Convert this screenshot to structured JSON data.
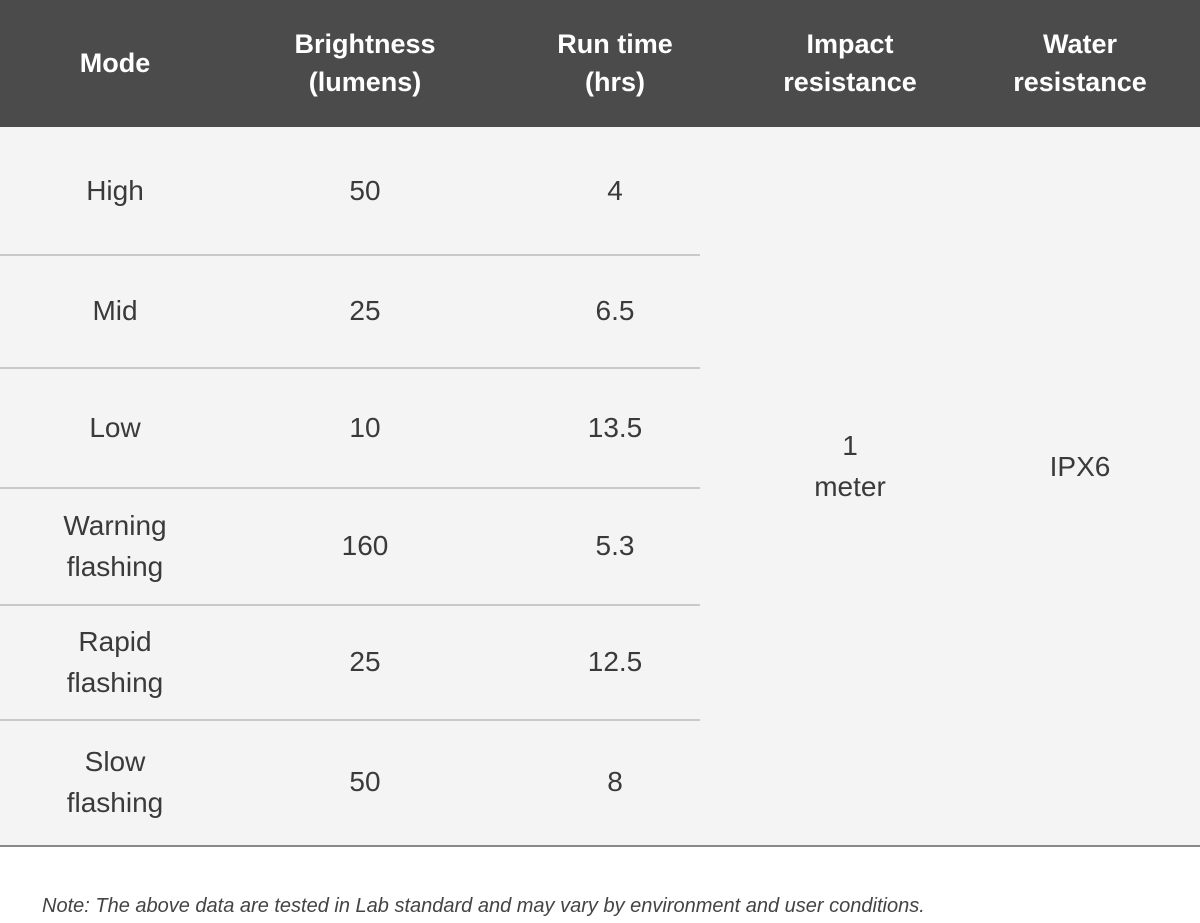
{
  "table": {
    "headers": [
      [
        "Mode"
      ],
      [
        "Brightness",
        "(lumens)"
      ],
      [
        "Run time",
        "(hrs)"
      ],
      [
        "Impact",
        "resistance"
      ],
      [
        "Water",
        "resistance"
      ]
    ],
    "rows": [
      {
        "mode": [
          "High"
        ],
        "brightness": 50,
        "run_time": 4
      },
      {
        "mode": [
          "Mid"
        ],
        "brightness": 25,
        "run_time": 6.5
      },
      {
        "mode": [
          "Low"
        ],
        "brightness": 10,
        "run_time": 13.5
      },
      {
        "mode": [
          "Warning",
          "flashing"
        ],
        "brightness": 160,
        "run_time": 5.3
      },
      {
        "mode": [
          "Rapid",
          "flashing"
        ],
        "brightness": 25,
        "run_time": 12.5
      },
      {
        "mode": [
          "Slow",
          "flashing"
        ],
        "brightness": 50,
        "run_time": 8
      }
    ],
    "impact_resistance": [
      "1",
      "meter"
    ],
    "water_resistance": "IPX6"
  },
  "note": "Note: The above data are tested in Lab standard and may vary by environment and user conditions."
}
